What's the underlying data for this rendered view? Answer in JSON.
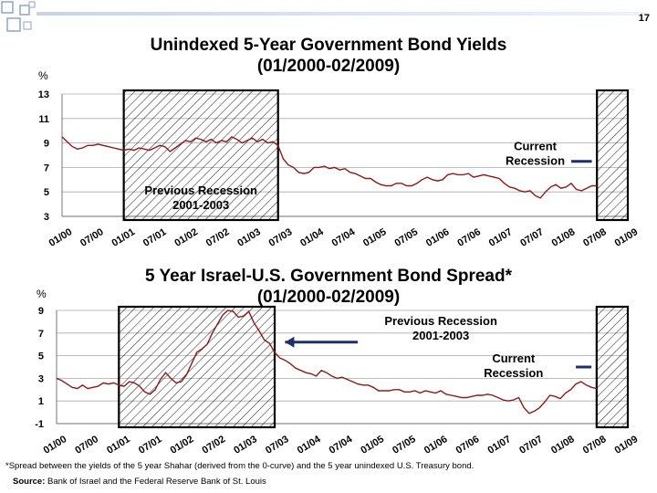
{
  "page_number": "17",
  "footnote": "*Spread between the yields of the 5 year Shahar (derived from the 0-curve) and the 5 year unindexed U.S. Treasury bond.",
  "source_label": "Source:",
  "source_text": " Bank of Israel and the Federal Reserve Bank of St. Louis",
  "colors": {
    "line": "#8b1a1a",
    "hatch": "#000000",
    "grid": "#aaaaaa"
  },
  "chart_data": [
    {
      "type": "line",
      "title": "Unindexed  5-Year Government Bond Yields",
      "subtitle": "(01/2000-02/2009)",
      "ylabel": "%",
      "ylim": [
        3,
        13
      ],
      "yticks": [
        3,
        5,
        7,
        9,
        11,
        13
      ],
      "grid": true,
      "xlabels": [
        "01/00",
        "07/00",
        "01/01",
        "07/01",
        "01/02",
        "07/02",
        "01/03",
        "07/03",
        "01/04",
        "07/04",
        "01/05",
        "07/05",
        "01/06",
        "07/06",
        "01/07",
        "07/07",
        "01/08",
        "07/08",
        "01/09"
      ],
      "xlim": [
        0,
        110
      ],
      "recession_bands": [
        [
          12,
          42
        ],
        [
          104,
          110
        ]
      ],
      "annotations": [
        {
          "text_lines": [
            "Previous Recession",
            "2001-2003"
          ],
          "x": 27,
          "y": 4.8
        },
        {
          "text_lines": [
            "Current",
            "Recession"
          ],
          "x": 92,
          "y": 8.4,
          "pointer": [
            [
              99,
              7.5
            ],
            [
              103,
              7.5
            ]
          ]
        }
      ],
      "series": [
        {
          "x": [
            0,
            1,
            2,
            3,
            4,
            5,
            6,
            7,
            8,
            9,
            10,
            11,
            12,
            13,
            14,
            15,
            16,
            17,
            18,
            19,
            20,
            21,
            22,
            23,
            24,
            25,
            26,
            27,
            28,
            29,
            30,
            31,
            32,
            33,
            34,
            35,
            36,
            37,
            38,
            39,
            40,
            41,
            42,
            43,
            44,
            45,
            46,
            47,
            48,
            49,
            50,
            51,
            52,
            53,
            54,
            55,
            56,
            57,
            58,
            59,
            60,
            61,
            62,
            63,
            64,
            65,
            66,
            67,
            68,
            69,
            70,
            71,
            72,
            73,
            74,
            75,
            76,
            77,
            78,
            79,
            80,
            81,
            82,
            83,
            84,
            85,
            86,
            87,
            88,
            89,
            90,
            91,
            92,
            93,
            94,
            95,
            96,
            97,
            98,
            99,
            100,
            101,
            102,
            103,
            104
          ],
          "values": [
            9.5,
            9.1,
            8.7,
            8.5,
            8.6,
            8.8,
            8.8,
            8.9,
            8.8,
            8.7,
            8.6,
            8.5,
            8.4,
            8.5,
            8.4,
            8.6,
            8.5,
            8.4,
            8.6,
            8.8,
            8.7,
            8.3,
            8.6,
            8.9,
            9.2,
            9.1,
            9.4,
            9.3,
            9.1,
            9.3,
            9.0,
            9.2,
            9.1,
            9.5,
            9.3,
            9.0,
            9.2,
            9.4,
            9.1,
            9.3,
            9.0,
            9.1,
            8.8,
            7.7,
            7.2,
            7.0,
            6.6,
            6.5,
            6.6,
            7.0,
            7.0,
            7.1,
            6.9,
            7.0,
            6.8,
            6.9,
            6.6,
            6.5,
            6.3,
            6.1,
            6.1,
            5.8,
            5.6,
            5.5,
            5.5,
            5.7,
            5.7,
            5.5,
            5.5,
            5.7,
            6.0,
            6.2,
            6.0,
            5.9,
            6.0,
            6.4,
            6.5,
            6.4,
            6.4,
            6.5,
            6.2,
            6.3,
            6.4,
            6.3,
            6.2,
            6.1,
            5.7,
            5.4,
            5.3,
            5.1,
            5.0,
            5.1,
            4.7,
            4.5,
            5.0,
            5.4,
            5.6,
            5.3,
            5.4,
            5.7,
            5.2,
            5.1,
            5.3,
            5.5,
            5.5
          ]
        }
      ]
    },
    {
      "type": "line",
      "title": "5 Year Israel-U.S. Government Bond Spread*",
      "subtitle": "(01/2000-02/2009)",
      "ylabel": "%",
      "ylim": [
        -1,
        9
      ],
      "yticks": [
        -1,
        1,
        3,
        5,
        7,
        9
      ],
      "grid": true,
      "xlabels": [
        "01/00",
        "07/00",
        "01/01",
        "07/01",
        "01/02",
        "07/02",
        "01/03",
        "07/03",
        "01/04",
        "07/04",
        "01/05",
        "07/05",
        "01/06",
        "07/06",
        "01/07",
        "07/07",
        "01/08",
        "07/08",
        "01/09"
      ],
      "xlim": [
        0,
        110
      ],
      "recession_bands": [
        [
          12,
          42
        ],
        [
          104,
          110
        ]
      ],
      "annotations": [
        {
          "text_lines": [
            "Previous Recession",
            "2001-2003"
          ],
          "x": 74,
          "y": 7.7,
          "pointer": [
            [
              58,
              6.2
            ],
            [
              44,
              6.2
            ]
          ]
        },
        {
          "text_lines": [
            "Current",
            "Recession"
          ],
          "x": 88,
          "y": 4.4,
          "pointer": [
            [
              100,
              4.0
            ],
            [
              103,
              4.0
            ]
          ]
        }
      ],
      "series": [
        {
          "x": [
            0,
            1,
            2,
            3,
            4,
            5,
            6,
            7,
            8,
            9,
            10,
            11,
            12,
            13,
            14,
            15,
            16,
            17,
            18,
            19,
            20,
            21,
            22,
            23,
            24,
            25,
            26,
            27,
            28,
            29,
            30,
            31,
            32,
            33,
            34,
            35,
            36,
            37,
            38,
            39,
            40,
            41,
            42,
            43,
            44,
            45,
            46,
            47,
            48,
            49,
            50,
            51,
            52,
            53,
            54,
            55,
            56,
            57,
            58,
            59,
            60,
            61,
            62,
            63,
            64,
            65,
            66,
            67,
            68,
            69,
            70,
            71,
            72,
            73,
            74,
            75,
            76,
            77,
            78,
            79,
            80,
            81,
            82,
            83,
            84,
            85,
            86,
            87,
            88,
            89,
            90,
            91,
            92,
            93,
            94,
            95,
            96,
            97,
            98,
            99,
            100,
            101,
            102,
            103,
            104
          ],
          "values": [
            3.0,
            2.8,
            2.5,
            2.2,
            2.1,
            2.4,
            2.1,
            2.2,
            2.3,
            2.6,
            2.5,
            2.6,
            2.4,
            2.3,
            2.7,
            2.6,
            2.3,
            1.8,
            1.6,
            2.0,
            2.9,
            3.5,
            3.0,
            2.6,
            2.7,
            3.3,
            4.3,
            5.3,
            5.6,
            6.0,
            7.0,
            7.8,
            8.6,
            9.0,
            8.9,
            8.4,
            8.5,
            8.9,
            7.9,
            7.2,
            6.4,
            6.1,
            5.3,
            4.8,
            4.6,
            4.3,
            3.9,
            3.7,
            3.5,
            3.4,
            3.2,
            3.7,
            3.5,
            3.2,
            3.0,
            3.1,
            2.9,
            2.7,
            2.5,
            2.4,
            2.4,
            2.2,
            1.9,
            1.9,
            1.9,
            2.0,
            2.0,
            1.8,
            1.8,
            1.9,
            1.7,
            1.9,
            1.8,
            1.7,
            1.9,
            1.6,
            1.5,
            1.4,
            1.3,
            1.3,
            1.4,
            1.5,
            1.5,
            1.6,
            1.5,
            1.3,
            1.1,
            1.0,
            1.1,
            1.3,
            0.4,
            -0.1,
            0.1,
            0.4,
            0.9,
            1.5,
            1.4,
            1.2,
            1.7,
            2.0,
            2.5,
            2.7,
            2.4,
            2.2,
            2.1
          ]
        }
      ]
    }
  ]
}
